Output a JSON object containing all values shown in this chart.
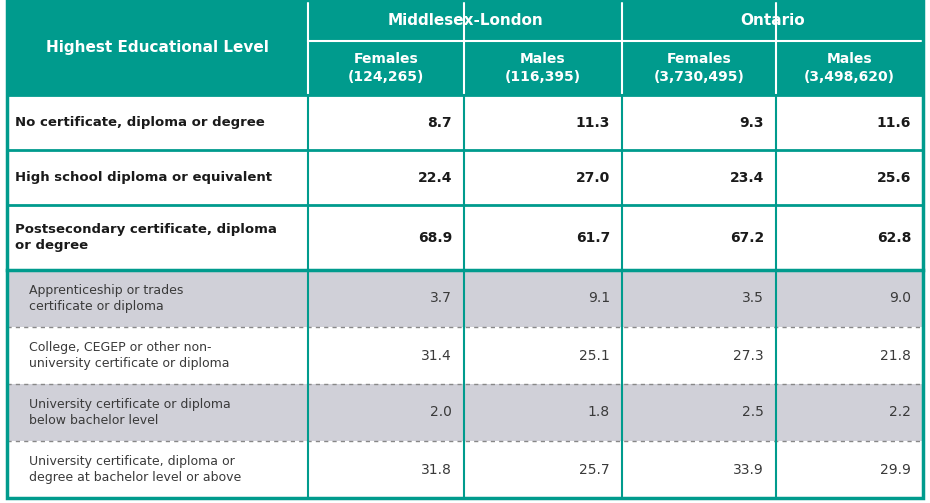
{
  "teal": "#009B8D",
  "white": "#FFFFFF",
  "gray": "#D0D0D8",
  "gray2": "#E8E8F0",
  "dark_text": "#1a1a1a",
  "gray_text": "#3a3a3a",
  "border_teal": "#009B8D",
  "col1_header": "Highest Educational Level",
  "col_group1": "Middlesex-London",
  "col_group2": "Ontario",
  "col_headers": [
    "Females\n(124,265)",
    "Males\n(116,395)",
    "Females\n(3,730,495)",
    "Males\n(3,498,620)"
  ],
  "rows": [
    {
      "label": "No certificate, diploma or degree",
      "values": [
        "8.7",
        "11.3",
        "9.3",
        "11.6"
      ],
      "bold": true,
      "bg": "white",
      "border": "solid"
    },
    {
      "label": "High school diploma or equivalent",
      "values": [
        "22.4",
        "27.0",
        "23.4",
        "25.6"
      ],
      "bold": true,
      "bg": "white",
      "border": "solid"
    },
    {
      "label": "Postsecondary certificate, diploma\nor degree",
      "values": [
        "68.9",
        "61.7",
        "67.2",
        "62.8"
      ],
      "bold": true,
      "bg": "white",
      "border": "solid"
    },
    {
      "label": "Apprenticeship or trades\ncertificate or diploma",
      "values": [
        "3.7",
        "9.1",
        "3.5",
        "9.0"
      ],
      "bold": false,
      "bg": "gray",
      "border": "dotted"
    },
    {
      "label": "College, CEGEP or other non-\nuniversity certificate or diploma",
      "values": [
        "31.4",
        "25.1",
        "27.3",
        "21.8"
      ],
      "bold": false,
      "bg": "white",
      "border": "dotted"
    },
    {
      "label": "University certificate or diploma\nbelow bachelor level",
      "values": [
        "2.0",
        "1.8",
        "2.5",
        "2.2"
      ],
      "bold": false,
      "bg": "gray",
      "border": "dotted"
    },
    {
      "label": "University certificate, diploma or\ndegree at bachelor level or above",
      "values": [
        "31.8",
        "25.7",
        "33.9",
        "29.9"
      ],
      "bold": false,
      "bg": "white",
      "border": "dotted"
    }
  ],
  "fig_w": 9.3,
  "fig_h": 5.03,
  "dpi": 100
}
